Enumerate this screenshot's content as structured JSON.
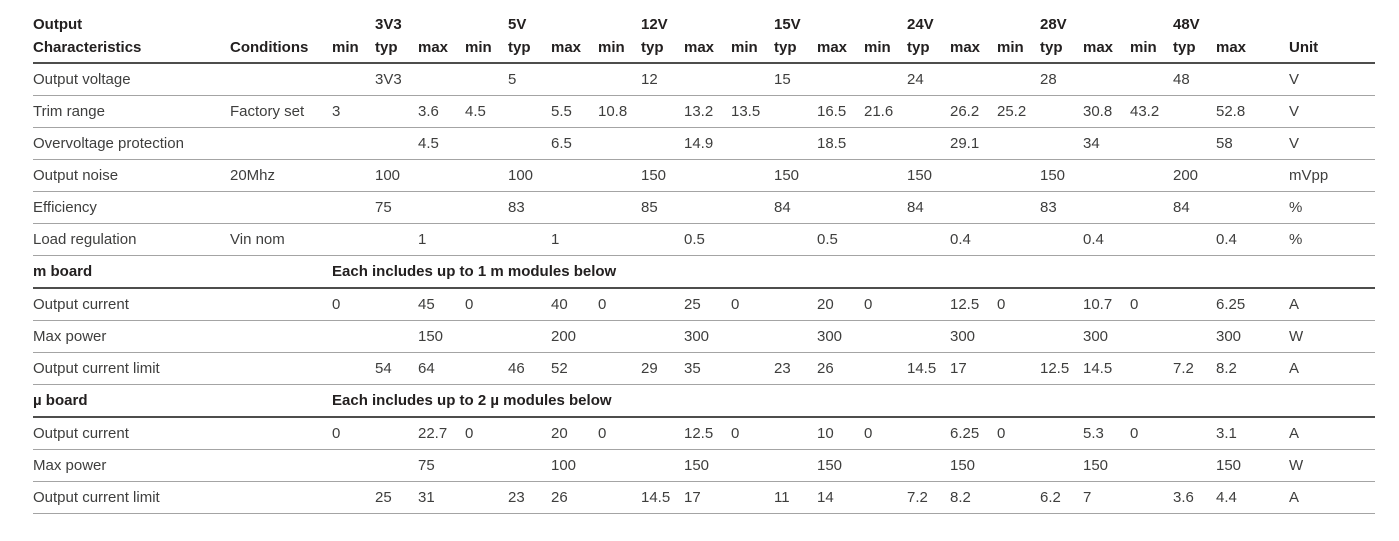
{
  "table": {
    "header": {
      "row1_char": "Output",
      "row2_char": "Characteristics",
      "conditions": "Conditions",
      "groups": [
        "3V3",
        "5V",
        "12V",
        "15V",
        "24V",
        "28V",
        "48V"
      ],
      "subcols": [
        "min",
        "typ",
        "max"
      ],
      "unit": "Unit"
    },
    "sections": [
      {
        "label": null,
        "note": null,
        "rows": [
          {
            "characteristics": "Output voltage",
            "conditions": "",
            "values": [
              "",
              "3V3",
              "",
              "",
              "5",
              "",
              "",
              "12",
              "",
              "",
              "15",
              "",
              "",
              "24",
              "",
              "",
              "28",
              "",
              "",
              "48",
              ""
            ],
            "unit": "V"
          },
          {
            "characteristics": "Trim range",
            "conditions": "Factory set",
            "values": [
              "3",
              "",
              "3.6",
              "4.5",
              "",
              "5.5",
              "10.8",
              "",
              "13.2",
              "13.5",
              "",
              "16.5",
              "21.6",
              "",
              "26.2",
              "25.2",
              "",
              "30.8",
              "43.2",
              "",
              "52.8"
            ],
            "unit": "V"
          },
          {
            "characteristics": "Overvoltage protection",
            "conditions": "",
            "values": [
              "",
              "",
              "4.5",
              "",
              "",
              "6.5",
              "",
              "",
              "14.9",
              "",
              "",
              "18.5",
              "",
              "",
              "29.1",
              "",
              "",
              "34",
              "",
              "",
              "58"
            ],
            "unit": "V"
          },
          {
            "characteristics": "Output noise",
            "conditions": "20Mhz",
            "values": [
              "",
              "100",
              "",
              "",
              "100",
              "",
              "",
              "150",
              "",
              "",
              "150",
              "",
              "",
              "150",
              "",
              "",
              "150",
              "",
              "",
              "200",
              ""
            ],
            "unit": "mVpp"
          },
          {
            "characteristics": "Efficiency",
            "conditions": "",
            "values": [
              "",
              "75",
              "",
              "",
              "83",
              "",
              "",
              "85",
              "",
              "",
              "84",
              "",
              "",
              "84",
              "",
              "",
              "83",
              "",
              "",
              "84",
              ""
            ],
            "unit": "%"
          },
          {
            "characteristics": "Load regulation",
            "conditions": "Vin nom",
            "values": [
              "",
              "",
              "1",
              "",
              "",
              "1",
              "",
              "",
              "0.5",
              "",
              "",
              "0.5",
              "",
              "",
              "0.4",
              "",
              "",
              "0.4",
              "",
              "",
              "0.4"
            ],
            "unit": "%"
          }
        ]
      },
      {
        "label": "m board",
        "note": "Each includes up to 1 m modules below",
        "rows": [
          {
            "characteristics": "Output current",
            "conditions": "",
            "values": [
              "0",
              "",
              "45",
              "0",
              "",
              "40",
              "0",
              "",
              "25",
              "0",
              "",
              "20",
              "0",
              "",
              "12.5",
              "0",
              "",
              "10.7",
              "0",
              "",
              "6.25"
            ],
            "unit": "A"
          },
          {
            "characteristics": "Max power",
            "conditions": "",
            "values": [
              "",
              "",
              "150",
              "",
              "",
              "200",
              "",
              "",
              "300",
              "",
              "",
              "300",
              "",
              "",
              "300",
              "",
              "",
              "300",
              "",
              "",
              "300"
            ],
            "unit": "W"
          },
          {
            "characteristics": "Output current limit",
            "conditions": "",
            "values": [
              "",
              "54",
              "64",
              "",
              "46",
              "52",
              "",
              "29",
              "35",
              "",
              "23",
              "26",
              "",
              "14.5",
              "17",
              "",
              "12.5",
              "14.5",
              "",
              "7.2",
              "8.2"
            ],
            "unit": "A"
          }
        ]
      },
      {
        "label": "µ board",
        "note": "Each includes up to 2 µ modules below",
        "rows": [
          {
            "characteristics": "Output current",
            "conditions": "",
            "values": [
              "0",
              "",
              "22.7",
              "0",
              "",
              "20",
              "0",
              "",
              "12.5",
              "0",
              "",
              "10",
              "0",
              "",
              "6.25",
              "0",
              "",
              "5.3",
              "0",
              "",
              "3.1"
            ],
            "unit": "A"
          },
          {
            "characteristics": "Max power",
            "conditions": "",
            "values": [
              "",
              "",
              "75",
              "",
              "",
              "100",
              "",
              "",
              "150",
              "",
              "",
              "150",
              "",
              "",
              "150",
              "",
              "",
              "150",
              "",
              "",
              "150"
            ],
            "unit": "W"
          },
          {
            "characteristics": "Output current limit",
            "conditions": "",
            "values": [
              "",
              "25",
              "31",
              "",
              "23",
              "26",
              "",
              "14.5",
              "17",
              "",
              "11",
              "14",
              "",
              "7.2",
              "8.2",
              "",
              "6.2",
              "7",
              "",
              "3.6",
              "4.4"
            ],
            "unit": "A"
          }
        ]
      }
    ]
  },
  "colors": {
    "header_text": "#232020",
    "body_text": "#3e3e3d",
    "row_line": "#a4a4a4",
    "section_line": "#4d4d4c",
    "background": "#ffffff"
  }
}
